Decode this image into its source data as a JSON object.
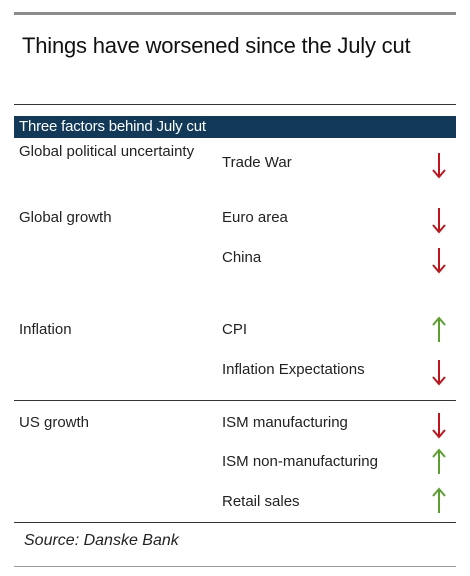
{
  "title": "Things have worsened since the July cut",
  "table_header": "Three factors behind July cut",
  "rows": [
    {
      "factor": "Global political uncertainty",
      "indicator": "Trade War",
      "direction": "down"
    },
    {
      "factor": "Global growth",
      "indicator": "Euro area",
      "direction": "down"
    },
    {
      "factor": "",
      "indicator": "China",
      "direction": "down"
    },
    {
      "factor": "Inflation",
      "indicator": "CPI",
      "direction": "up"
    },
    {
      "factor": "",
      "indicator": "Inflation Expectations",
      "direction": "down"
    },
    {
      "factor": "US growth",
      "indicator": "ISM manufacturing",
      "direction": "down"
    },
    {
      "factor": "",
      "indicator": "ISM non-manufacturing",
      "direction": "up"
    },
    {
      "factor": "",
      "indicator": "Retail sales",
      "direction": "up"
    }
  ],
  "source": "Source: Danske Bank",
  "colors": {
    "down": "#c0141c",
    "up": "#5aa02c",
    "header_bg": "#123a58"
  }
}
